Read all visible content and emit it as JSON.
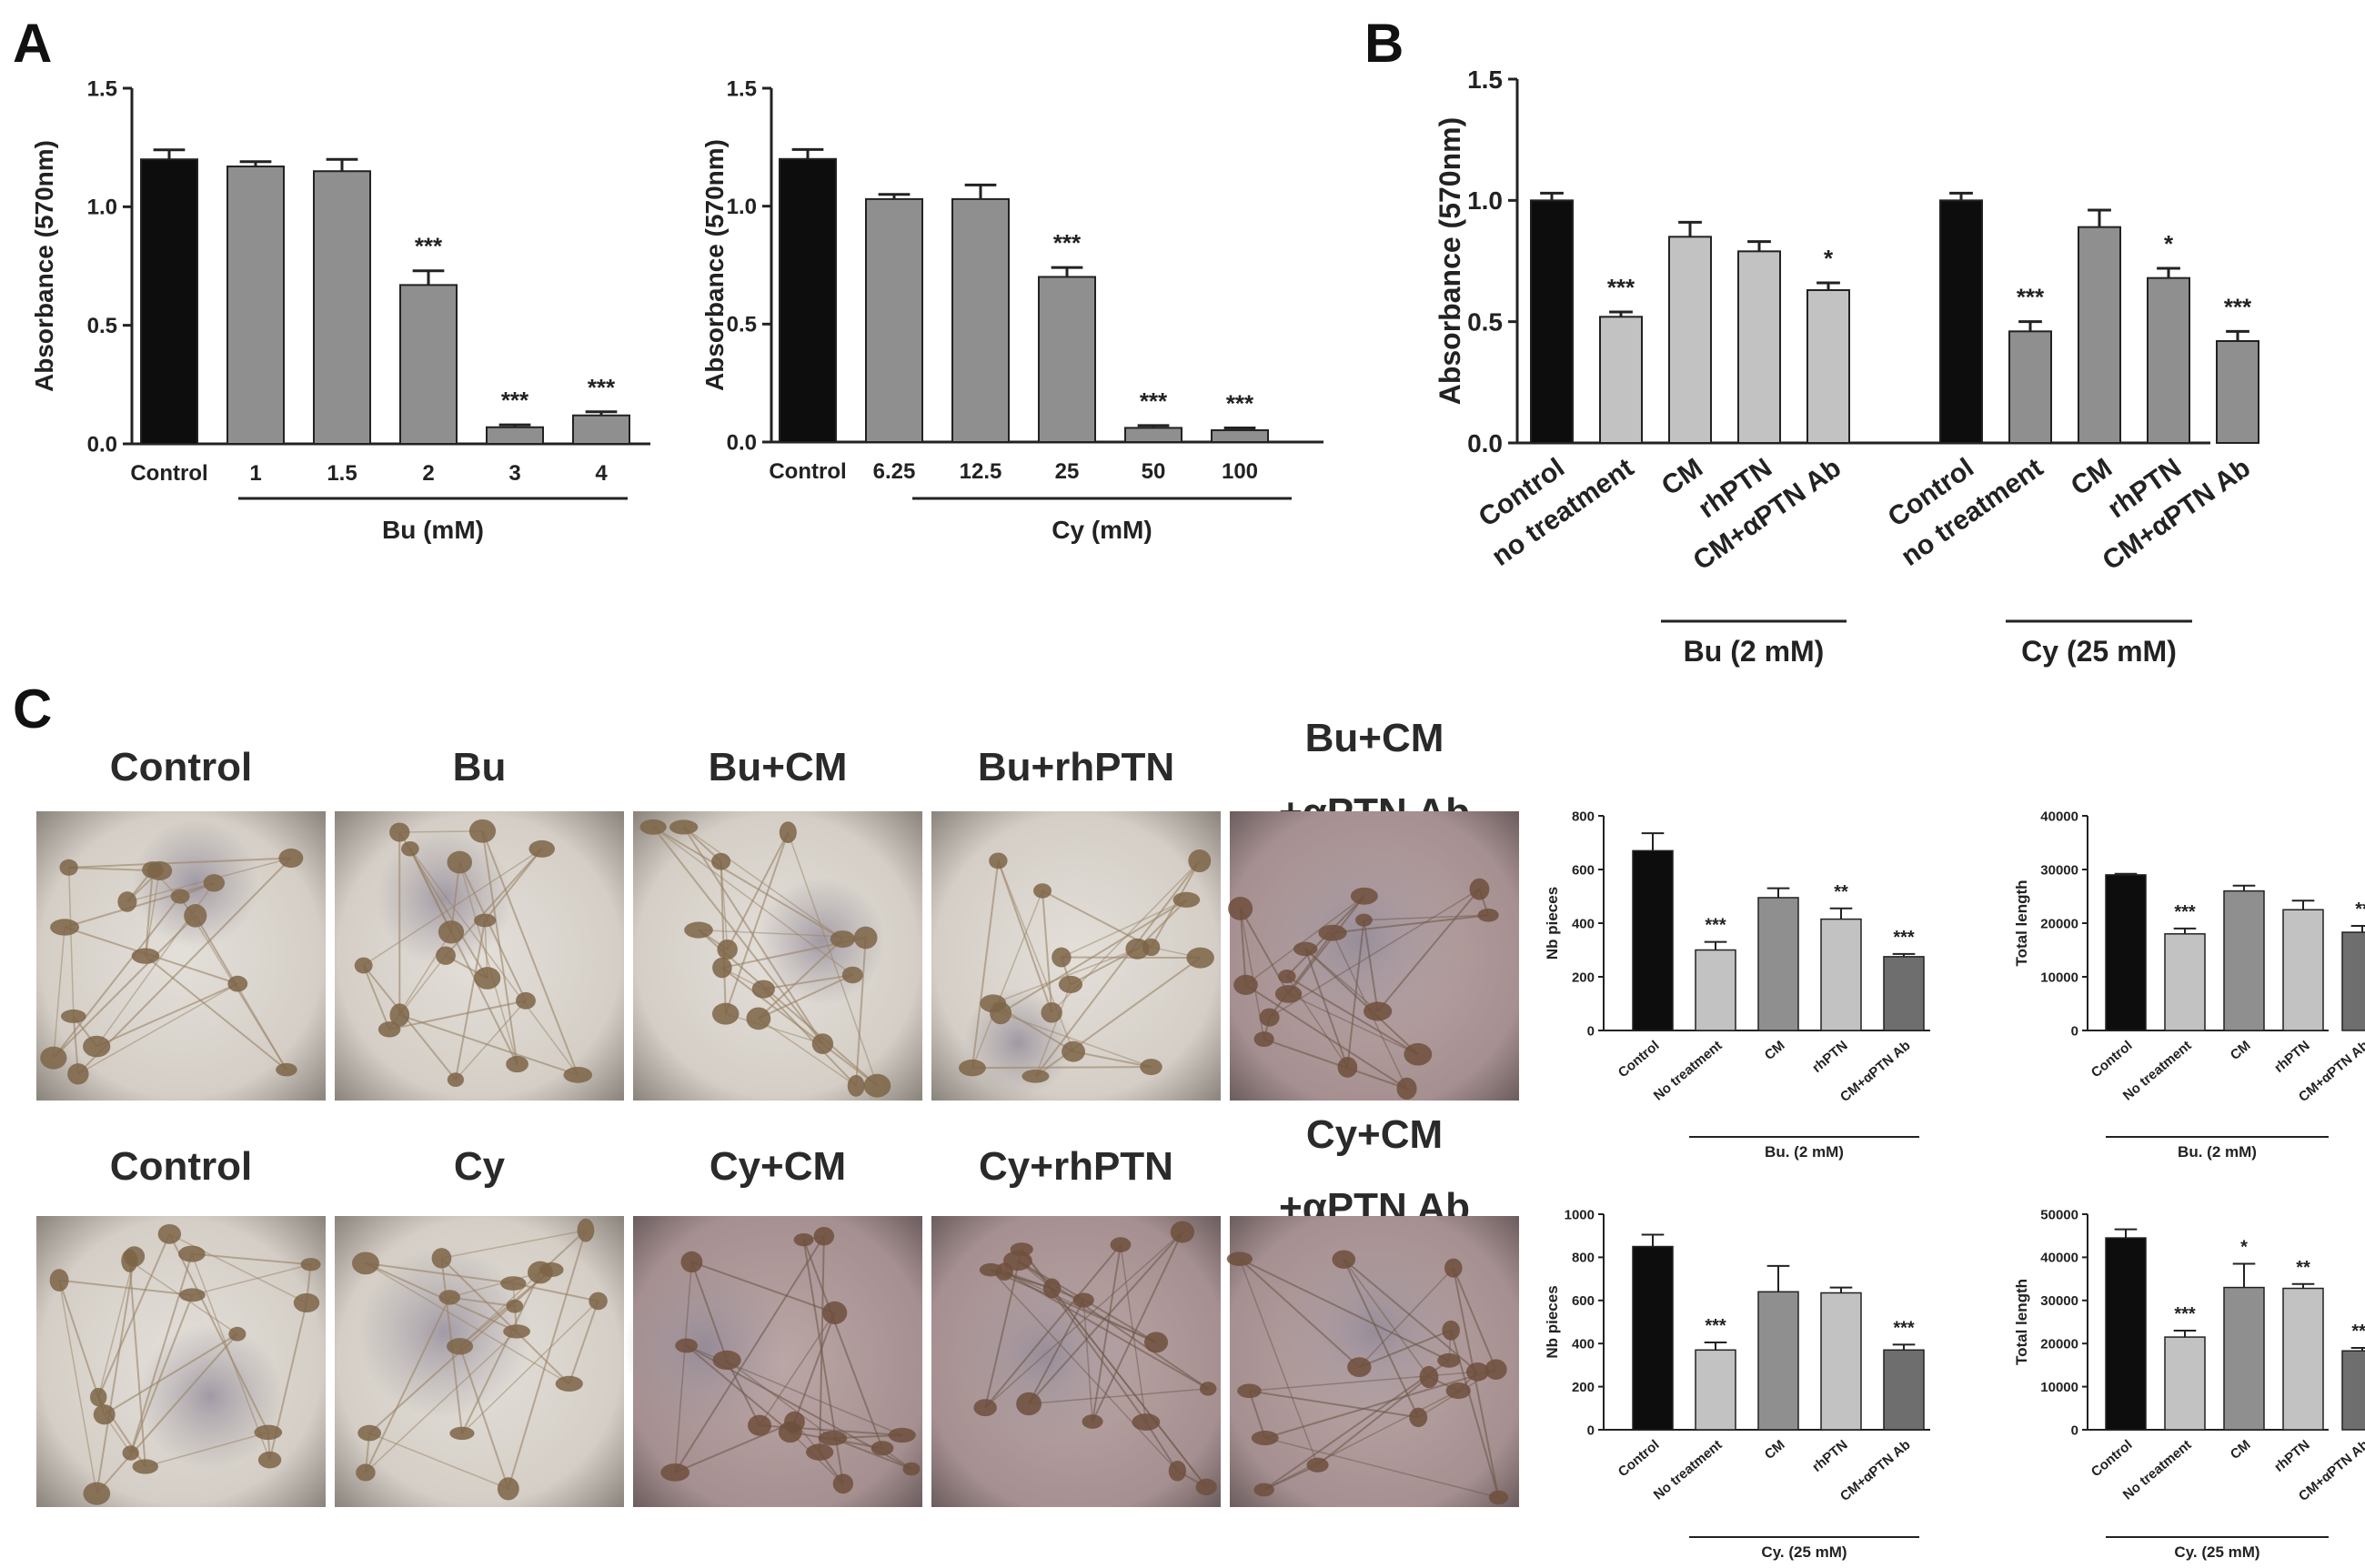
{
  "panel_letters": {
    "a": "A",
    "b": "B",
    "c": "C"
  },
  "micrograph_labels": {
    "row1": [
      "Control",
      "Bu",
      "Bu+CM",
      "Bu+rhPTN",
      [
        "Bu+CM",
        "+αPTN Ab"
      ]
    ],
    "row2": [
      "Control",
      "Cy",
      "Cy+CM",
      "Cy+rhPTN",
      [
        "Cy+CM",
        "+αPTN Ab"
      ]
    ]
  },
  "colors": {
    "control": "#0d0d0d",
    "gray": "#8f8f8f",
    "light": "#c2c2c2",
    "mid": "#a6a6a6",
    "dark": "#6e6e6e"
  },
  "chart_data": [
    {
      "id": "a-bu",
      "type": "bar",
      "ylabel": "Absorbance (570nm)",
      "ylim": [
        0,
        1.5
      ],
      "yticks": [
        "0.0",
        "0.5",
        "1.0",
        "1.5"
      ],
      "categories": [
        "Control",
        "1",
        "1.5",
        "2",
        "3",
        "4"
      ],
      "values": [
        1.2,
        1.17,
        1.15,
        0.67,
        0.07,
        0.12
      ],
      "errors": [
        0.04,
        0.02,
        0.05,
        0.06,
        0.01,
        0.015
      ],
      "significance": [
        "",
        "",
        "",
        "***",
        "***",
        "***"
      ],
      "group_label": "Bu (mM)"
    },
    {
      "id": "a-cy",
      "type": "bar",
      "ylabel": "Absorbance (570nm)",
      "ylim": [
        0,
        1.5
      ],
      "yticks": [
        "0.0",
        "0.5",
        "1.0",
        "1.5"
      ],
      "categories": [
        "Control",
        "6.25",
        "12.5",
        "25",
        "50",
        "100"
      ],
      "values": [
        1.2,
        1.03,
        1.03,
        0.7,
        0.06,
        0.05
      ],
      "errors": [
        0.04,
        0.02,
        0.06,
        0.04,
        0.01,
        0.01
      ],
      "significance": [
        "",
        "",
        "",
        "***",
        "***",
        "***"
      ],
      "group_label": "Cy (mM)"
    },
    {
      "id": "b",
      "type": "bar",
      "ylabel": "Absorbance (570nm)",
      "ylim": [
        0,
        1.5
      ],
      "yticks": [
        "0.0",
        "0.5",
        "1.0",
        "1.5"
      ],
      "categories": [
        "Control",
        "no treatment",
        "CM",
        "rhPTN",
        "CM+αPTN Ab",
        "Control",
        "no treatment",
        "CM",
        "rhPTN",
        "CM+αPTN Ab"
      ],
      "values": [
        1.0,
        0.52,
        0.85,
        0.79,
        0.63,
        1.0,
        0.46,
        0.89,
        0.68,
        0.42
      ],
      "errors": [
        0.03,
        0.02,
        0.06,
        0.04,
        0.03,
        0.03,
        0.04,
        0.07,
        0.04,
        0.04
      ],
      "significance": [
        "",
        "***",
        "",
        "",
        "*",
        "",
        "***",
        "",
        "*",
        "***"
      ],
      "groups": [
        {
          "label": "Bu (2 mM)"
        },
        {
          "label": "Cy (25 mM)"
        }
      ]
    },
    {
      "id": "c-bu-nb",
      "type": "bar",
      "ylabel": "Nb pieces",
      "ylim": [
        0,
        800
      ],
      "yticks": [
        "0",
        "200",
        "400",
        "600",
        "800"
      ],
      "categories": [
        "Control",
        "No treatment",
        "CM",
        "rhPTN",
        "CM+αPTN Ab"
      ],
      "values": [
        670,
        300,
        495,
        415,
        275
      ],
      "errors": [
        65,
        30,
        35,
        40,
        10
      ],
      "significance": [
        "",
        "***",
        "",
        "**",
        "***"
      ],
      "group_label": "Bu. (2 mM)"
    },
    {
      "id": "c-bu-len",
      "type": "bar",
      "ylabel": "Total length",
      "ylim": [
        0,
        40000
      ],
      "yticks": [
        "0",
        "10000",
        "20000",
        "30000",
        "40000"
      ],
      "categories": [
        "Control",
        "No treatment",
        "CM",
        "rhPTN",
        "CM+αPTN Ab"
      ],
      "values": [
        29000,
        18000,
        26000,
        22500,
        18300
      ],
      "errors": [
        200,
        1000,
        1000,
        1700,
        1200
      ],
      "significance": [
        "",
        "***",
        "",
        "",
        "**"
      ],
      "group_label": "Bu. (2 mM)"
    },
    {
      "id": "c-cy-nb",
      "type": "bar",
      "ylabel": "Nb pieces",
      "ylim": [
        0,
        1000
      ],
      "yticks": [
        "0",
        "200",
        "400",
        "600",
        "800",
        "1000"
      ],
      "categories": [
        "Control",
        "No treatment",
        "CM",
        "rhPTN",
        "CM+αPTN Ab"
      ],
      "values": [
        850,
        370,
        640,
        635,
        370
      ],
      "errors": [
        55,
        35,
        120,
        25,
        25
      ],
      "significance": [
        "",
        "***",
        "",
        "",
        "***"
      ],
      "group_label": "Cy. (25 mM)"
    },
    {
      "id": "c-cy-len",
      "type": "bar",
      "ylabel": "Total length",
      "ylim": [
        0,
        50000
      ],
      "yticks": [
        "0",
        "10000",
        "20000",
        "30000",
        "40000",
        "50000"
      ],
      "categories": [
        "Control",
        "No treatment",
        "CM",
        "rhPTN",
        "CM+αPTN Ab"
      ],
      "values": [
        44500,
        21500,
        33000,
        32800,
        18300
      ],
      "errors": [
        2000,
        1500,
        5500,
        1000,
        700
      ],
      "significance": [
        "",
        "***",
        "*",
        "**",
        "***"
      ],
      "group_label": "Cy. (25 mM)"
    }
  ]
}
